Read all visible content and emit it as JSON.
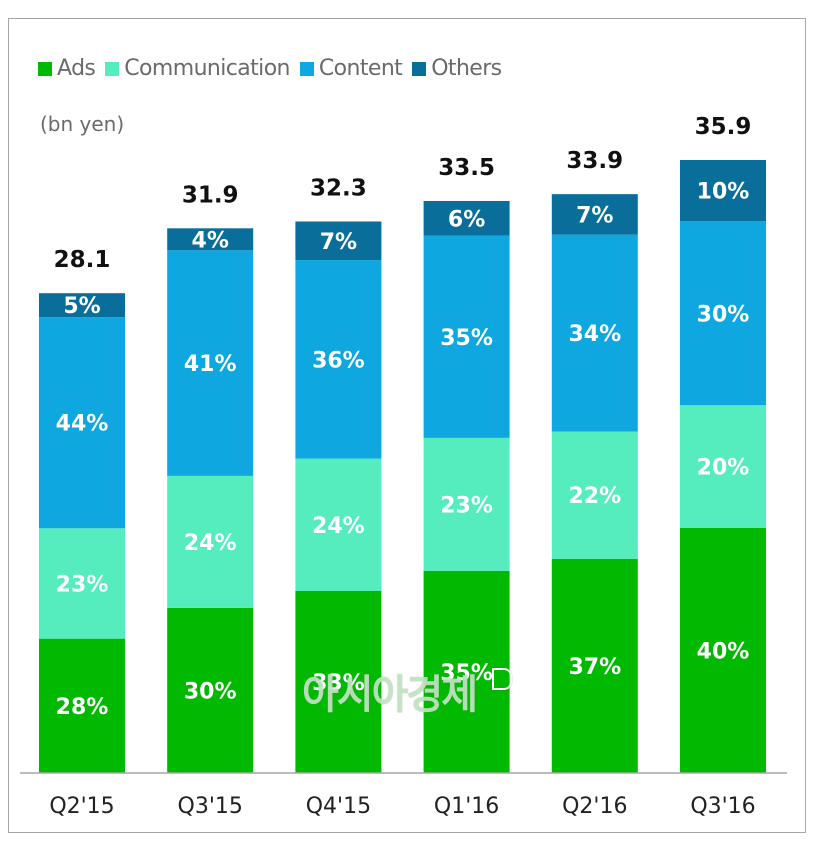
{
  "chart_data": {
    "type": "bar",
    "stacked": true,
    "title": "",
    "unit_label": "(bn yen)",
    "xlabel": "",
    "ylabel": "",
    "ylim": [
      0,
      36
    ],
    "grid": false,
    "legend_position": "top-left",
    "categories": [
      "Q2'15",
      "Q3'15",
      "Q4'15",
      "Q1'16",
      "Q2'16",
      "Q3'16"
    ],
    "totals": [
      28.1,
      31.9,
      32.3,
      33.5,
      33.9,
      35.9
    ],
    "total_labels": [
      "28.1",
      "31.9",
      "32.3",
      "33.5",
      "33.9",
      "35.9"
    ],
    "series": [
      {
        "name": "Ads",
        "color": "#00b900",
        "values_pct": [
          28,
          30,
          33,
          35,
          37,
          40
        ],
        "labels": [
          "28%",
          "30%",
          "33%",
          "35%",
          "37%",
          "40%"
        ]
      },
      {
        "name": "Communication",
        "color": "#55ecbe",
        "values_pct": [
          23,
          24,
          24,
          23,
          22,
          20
        ],
        "labels": [
          "23%",
          "24%",
          "24%",
          "23%",
          "22%",
          "20%"
        ]
      },
      {
        "name": "Content",
        "color": "#0fa7df",
        "values_pct": [
          44,
          41,
          36,
          35,
          34,
          30
        ],
        "labels": [
          "44%",
          "41%",
          "36%",
          "35%",
          "34%",
          "30%"
        ]
      },
      {
        "name": "Others",
        "color": "#0a6e9a",
        "values_pct": [
          5,
          4,
          7,
          6,
          7,
          10
        ],
        "labels": [
          "5%",
          "4%",
          "7%",
          "6%",
          "7%",
          "10%"
        ]
      }
    ]
  },
  "watermark": {
    "text": "아시아경제"
  }
}
